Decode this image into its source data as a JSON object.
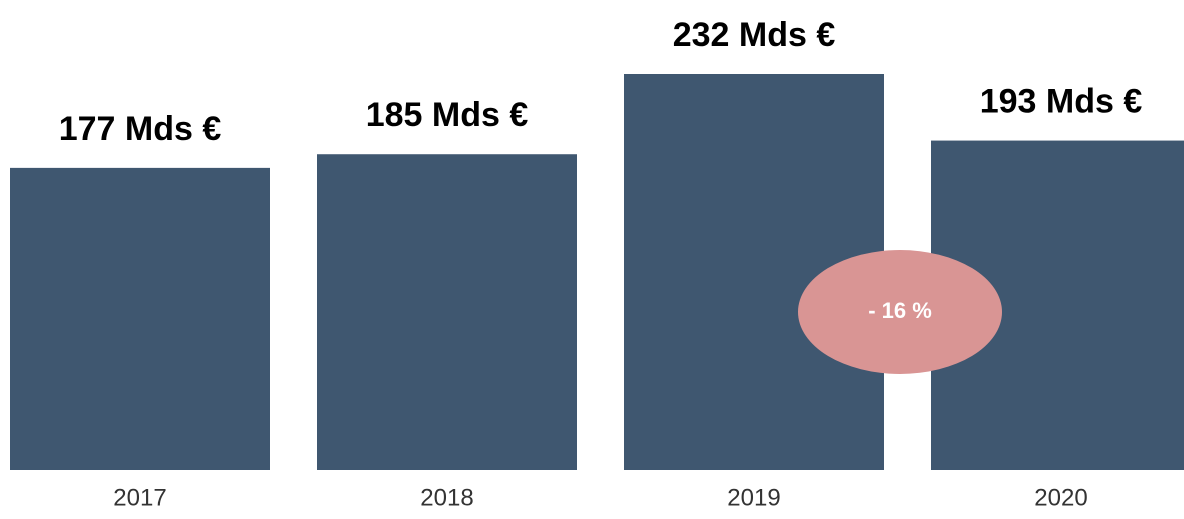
{
  "chart_data": {
    "type": "bar",
    "categories": [
      "2017",
      "2018",
      "2019",
      "2020"
    ],
    "values": [
      177,
      185,
      232,
      193
    ],
    "value_labels": [
      "177 Mds €",
      "185 Mds €",
      "232 Mds €",
      "193 Mds €"
    ],
    "color": "#3f5770",
    "annotation": "- 16 %"
  }
}
